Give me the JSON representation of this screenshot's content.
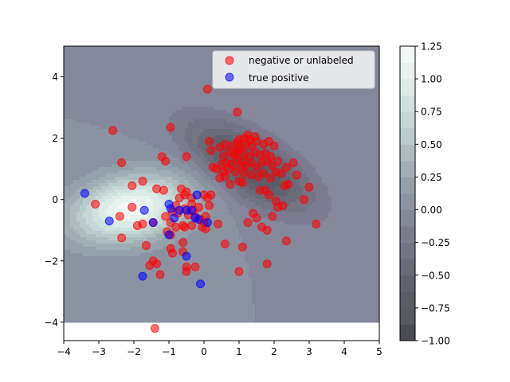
{
  "chart_data": {
    "type": "scatter",
    "title": "",
    "xlabel": "",
    "ylabel": "",
    "xlim": [
      -4,
      5
    ],
    "ylim": [
      -4.6,
      5
    ],
    "x_ticks": [
      "−4",
      "−3",
      "−2",
      "−1",
      "0",
      "1",
      "2",
      "3",
      "4",
      "5"
    ],
    "y_ticks": [
      "−4",
      "−2",
      "0",
      "2",
      "4"
    ],
    "legend_position": "top-right",
    "background": {
      "type": "filled-contour",
      "extent": {
        "x": [
          -4,
          5
        ],
        "y": [
          -4,
          5
        ]
      },
      "components": [
        {
          "type": "gaussian",
          "cx": -2.1,
          "cy": -0.3,
          "sx": 1.15,
          "sy": 0.75,
          "rho": 0.25,
          "amp": 1.2
        },
        {
          "type": "gaussian",
          "cx": 1.3,
          "cy": 1.1,
          "sx": 1.2,
          "sy": 1.0,
          "rho": -0.65,
          "amp": -0.82
        }
      ]
    },
    "colorbar": {
      "ticks": [
        "1.25",
        "1.00",
        "0.75",
        "0.50",
        "0.25",
        "0.00",
        "−0.25",
        "−0.50",
        "−0.75",
        "−1.00"
      ],
      "levels": [
        -1.0,
        -0.875,
        -0.75,
        -0.625,
        -0.5,
        -0.375,
        -0.25,
        -0.125,
        0.0,
        0.125,
        0.25,
        0.375,
        0.5,
        0.625,
        0.75,
        0.875,
        1.0,
        1.125,
        1.25
      ],
      "colors": [
        "#4c4c54",
        "#58585f",
        "#5c5c66",
        "#62626e",
        "#6a6a78",
        "#737384",
        "#7c7c90",
        "#83889a",
        "#8b93a2",
        "#94a0aa",
        "#a0adb4",
        "#acbcbf",
        "#b9cccb",
        "#c5d8d5",
        "#d0e2de",
        "#dcebe6",
        "#e8f2ee",
        "#f2f8f5"
      ]
    },
    "series": [
      {
        "name": "negative or unlabeled",
        "color": "#ff0000",
        "points": [
          [
            0.1,
            3.6
          ],
          [
            0.95,
            2.85
          ],
          [
            -0.95,
            2.35
          ],
          [
            -2.6,
            2.25
          ],
          [
            -1.2,
            1.4
          ],
          [
            -1.1,
            1.25
          ],
          [
            -2.35,
            1.2
          ],
          [
            -0.5,
            1.4
          ],
          [
            0.15,
            1.9
          ],
          [
            0.2,
            1.6
          ],
          [
            0.35,
            1.0
          ],
          [
            0.25,
            1.05
          ],
          [
            -1.75,
            0.6
          ],
          [
            -2.05,
            0.45
          ],
          [
            -1.35,
            0.35
          ],
          [
            -1.15,
            0.3
          ],
          [
            -0.65,
            0.35
          ],
          [
            -0.5,
            0.25
          ],
          [
            -0.7,
            0.05
          ],
          [
            -0.55,
            0.15
          ],
          [
            0.0,
            0.15
          ],
          [
            0.1,
            0.05
          ],
          [
            0.2,
            0.15
          ],
          [
            -0.35,
            0.05
          ],
          [
            -3.1,
            -0.15
          ],
          [
            -2.05,
            -0.25
          ],
          [
            -2.4,
            -0.55
          ],
          [
            -1.75,
            -0.8
          ],
          [
            -1.45,
            -0.75
          ],
          [
            -1.9,
            -0.85
          ],
          [
            -1.1,
            -0.55
          ],
          [
            -0.95,
            -0.75
          ],
          [
            -0.9,
            -0.4
          ],
          [
            -0.8,
            -0.2
          ],
          [
            -0.75,
            -0.45
          ],
          [
            -0.55,
            -0.3
          ],
          [
            -0.45,
            -0.5
          ],
          [
            -0.35,
            -0.15
          ],
          [
            -0.3,
            -0.35
          ],
          [
            -0.25,
            -0.55
          ],
          [
            -0.15,
            -0.25
          ],
          [
            -0.1,
            -0.65
          ],
          [
            0.0,
            -0.75
          ],
          [
            0.05,
            -0.55
          ],
          [
            0.15,
            -0.2
          ],
          [
            -0.6,
            -0.85
          ],
          [
            -0.8,
            -0.9
          ],
          [
            -0.55,
            -0.9
          ],
          [
            -0.35,
            -0.85
          ],
          [
            -0.05,
            -0.9
          ],
          [
            0.05,
            -0.95
          ],
          [
            -2.35,
            -1.25
          ],
          [
            -1.05,
            -1.05
          ],
          [
            -0.95,
            -1.15
          ],
          [
            -0.6,
            -1.4
          ],
          [
            -1.65,
            -1.5
          ],
          [
            -0.95,
            -1.6
          ],
          [
            -0.9,
            -1.75
          ],
          [
            -0.6,
            -1.7
          ],
          [
            -1.45,
            -2.0
          ],
          [
            -1.55,
            -2.15
          ],
          [
            -1.35,
            -2.1
          ],
          [
            -1.25,
            -2.45
          ],
          [
            -0.5,
            -2.2
          ],
          [
            -0.25,
            -2.2
          ],
          [
            -0.5,
            -2.35
          ],
          [
            -1.4,
            -4.2
          ],
          [
            0.4,
            -0.8
          ],
          [
            0.6,
            -1.45
          ],
          [
            1.1,
            -1.55
          ],
          [
            1.0,
            -2.35
          ],
          [
            1.8,
            -2.1
          ],
          [
            2.35,
            -1.35
          ],
          [
            3.2,
            -0.8
          ],
          [
            1.4,
            -0.45
          ],
          [
            1.25,
            -0.75
          ],
          [
            1.5,
            -0.6
          ],
          [
            1.65,
            -0.9
          ],
          [
            1.8,
            -1.0
          ],
          [
            1.95,
            -0.55
          ],
          [
            2.1,
            -0.25
          ],
          [
            2.25,
            -0.2
          ],
          [
            2.05,
            -0.05
          ],
          [
            2.85,
            0.0
          ],
          [
            1.85,
            0.15
          ],
          [
            1.6,
            0.3
          ],
          [
            1.75,
            0.3
          ],
          [
            2.3,
            0.45
          ],
          [
            2.4,
            0.5
          ],
          [
            3.0,
            0.4
          ],
          [
            2.65,
            0.8
          ],
          [
            2.55,
            1.2
          ],
          [
            1.1,
            0.55
          ],
          [
            1.0,
            0.6
          ],
          [
            0.75,
            0.5
          ],
          [
            0.6,
            0.75
          ],
          [
            0.45,
            0.7
          ],
          [
            0.7,
            1.0
          ],
          [
            0.9,
            0.9
          ],
          [
            1.15,
            0.85
          ],
          [
            1.35,
            0.8
          ],
          [
            1.55,
            0.75
          ],
          [
            1.7,
            0.85
          ],
          [
            1.9,
            0.7
          ],
          [
            2.05,
            0.9
          ],
          [
            2.2,
            0.85
          ],
          [
            2.35,
            1.05
          ],
          [
            0.5,
            1.15
          ],
          [
            0.65,
            1.2
          ],
          [
            0.8,
            1.15
          ],
          [
            0.95,
            1.3
          ],
          [
            1.1,
            1.25
          ],
          [
            1.2,
            1.1
          ],
          [
            1.35,
            1.2
          ],
          [
            1.5,
            1.05
          ],
          [
            1.65,
            1.2
          ],
          [
            1.8,
            1.25
          ],
          [
            1.95,
            1.1
          ],
          [
            2.1,
            1.25
          ],
          [
            0.55,
            1.4
          ],
          [
            0.7,
            1.55
          ],
          [
            0.85,
            1.45
          ],
          [
            1.0,
            1.6
          ],
          [
            1.15,
            1.5
          ],
          [
            1.3,
            1.4
          ],
          [
            1.45,
            1.55
          ],
          [
            1.6,
            1.45
          ],
          [
            1.75,
            1.5
          ],
          [
            1.9,
            1.4
          ],
          [
            0.45,
            1.7
          ],
          [
            0.6,
            1.8
          ],
          [
            0.8,
            1.75
          ],
          [
            0.95,
            1.85
          ],
          [
            1.05,
            1.7
          ],
          [
            1.2,
            1.8
          ],
          [
            1.35,
            1.75
          ],
          [
            1.5,
            1.9
          ],
          [
            1.7,
            1.8
          ],
          [
            1.85,
            1.9
          ],
          [
            2.0,
            1.75
          ],
          [
            1.0,
            1.95
          ],
          [
            1.15,
            2.0
          ],
          [
            1.3,
            1.95
          ],
          [
            1.45,
            2.05
          ],
          [
            1.25,
            2.1
          ],
          [
            0.9,
            1.5
          ],
          [
            1.05,
            1.05
          ],
          [
            0.55,
            0.9
          ]
        ]
      },
      {
        "name": "true positive",
        "color": "#0000ff",
        "points": [
          [
            -3.4,
            0.2
          ],
          [
            -2.7,
            -0.7
          ],
          [
            -1.7,
            -0.35
          ],
          [
            -1.45,
            -0.75
          ],
          [
            -1.75,
            -2.5
          ],
          [
            -1.0,
            -0.15
          ],
          [
            -0.95,
            -0.3
          ],
          [
            -0.85,
            -0.6
          ],
          [
            -0.7,
            -0.35
          ],
          [
            -0.5,
            -0.35
          ],
          [
            -0.35,
            -0.35
          ],
          [
            -0.2,
            0.15
          ],
          [
            -0.25,
            -0.6
          ],
          [
            -0.15,
            -0.65
          ],
          [
            0.1,
            -0.75
          ],
          [
            -1.0,
            -1.15
          ],
          [
            -0.5,
            -1.85
          ],
          [
            -0.1,
            -2.75
          ]
        ]
      }
    ]
  }
}
